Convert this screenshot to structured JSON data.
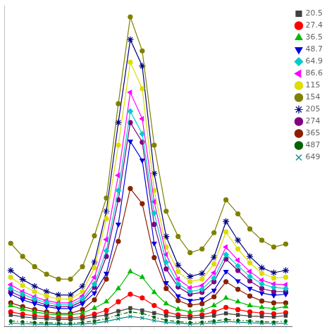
{
  "chart_data": {
    "type": "line",
    "categories": [
      null,
      null,
      null,
      null,
      null,
      null,
      null,
      null,
      null,
      null,
      null,
      null,
      null,
      null,
      null,
      null,
      null,
      null,
      null,
      null,
      null,
      null,
      null,
      null
    ],
    "series": [
      {
        "name": "20.5",
        "color": "#404040",
        "marker": "square",
        "line_style": "solid",
        "values": [
          30,
          25,
          22,
          20,
          18,
          18,
          20,
          25,
          30,
          40,
          48,
          42,
          35,
          28,
          24,
          22,
          24,
          28,
          34,
          30,
          27,
          26,
          25,
          28
        ]
      },
      {
        "name": "27.4",
        "color": "#ff0000",
        "marker": "circle",
        "line_style": "solid",
        "values": [
          38,
          32,
          28,
          25,
          22,
          22,
          25,
          32,
          42,
          65,
          85,
          75,
          55,
          38,
          30,
          27,
          30,
          38,
          50,
          44,
          38,
          35,
          33,
          36
        ]
      },
      {
        "name": "36.5",
        "color": "#00bb00",
        "marker": "triangle",
        "line_style": "solid",
        "values": [
          55,
          45,
          38,
          33,
          30,
          30,
          35,
          48,
          65,
          100,
          145,
          130,
          90,
          60,
          45,
          38,
          42,
          55,
          75,
          65,
          55,
          50,
          47,
          52
        ]
      },
      {
        "name": "48.7",
        "color": "#0000dd",
        "marker": "triangle_down",
        "line_style": "solid",
        "values": [
          85,
          70,
          60,
          52,
          47,
          47,
          60,
          88,
          140,
          270,
          490,
          440,
          220,
          115,
          80,
          68,
          72,
          95,
          145,
          120,
          100,
          88,
          82,
          85
        ]
      },
      {
        "name": "64.9",
        "color": "#00cccc",
        "marker": "diamond",
        "line_style": "solid",
        "values": [
          100,
          85,
          72,
          63,
          57,
          57,
          72,
          112,
          200,
          360,
          570,
          510,
          300,
          170,
          112,
          92,
          98,
          128,
          190,
          160,
          132,
          112,
          103,
          100
        ]
      },
      {
        "name": "86.6",
        "color": "#ff00ff",
        "marker": "triangle_left",
        "line_style": "solid",
        "values": [
          110,
          92,
          78,
          68,
          62,
          62,
          80,
          130,
          230,
          400,
          620,
          550,
          330,
          190,
          125,
          102,
          108,
          142,
          210,
          175,
          145,
          122,
          112,
          110
        ]
      },
      {
        "name": "115",
        "color": "#dddd00",
        "marker": "circle",
        "line_style": "solid",
        "values": [
          130,
          108,
          92,
          80,
          72,
          72,
          92,
          155,
          285,
          480,
          700,
          630,
          360,
          210,
          145,
          118,
          125,
          165,
          250,
          205,
          168,
          140,
          128,
          130
        ]
      },
      {
        "name": "154",
        "color": "#808000",
        "marker": "circle",
        "line_style": "solid",
        "values": [
          220,
          185,
          158,
          138,
          125,
          125,
          158,
          240,
          340,
          590,
          820,
          730,
          480,
          305,
          238,
          195,
          205,
          248,
          335,
          298,
          258,
          228,
          210,
          218
        ]
      },
      {
        "name": "205",
        "color": "#000080",
        "marker": "star",
        "line_style": "solid",
        "values": [
          148,
          124,
          106,
          92,
          83,
          83,
          106,
          170,
          305,
          540,
          760,
          690,
          405,
          238,
          162,
          132,
          140,
          183,
          278,
          228,
          185,
          155,
          142,
          148
        ]
      },
      {
        "name": "274",
        "color": "#800080",
        "marker": "circle",
        "line_style": "solid",
        "values": [
          92,
          77,
          66,
          57,
          52,
          52,
          66,
          103,
          185,
          335,
          540,
          488,
          270,
          152,
          104,
          85,
          90,
          118,
          178,
          148,
          120,
          100,
          92,
          92
        ]
      },
      {
        "name": "365",
        "color": "#8B2000",
        "marker": "circle",
        "line_style": "solid",
        "values": [
          62,
          52,
          44,
          38,
          34,
          34,
          44,
          70,
          125,
          225,
          365,
          325,
          182,
          100,
          68,
          56,
          60,
          78,
          118,
          98,
          80,
          67,
          62,
          62
        ]
      },
      {
        "name": "487",
        "color": "#006400",
        "marker": "point",
        "line_style": "dashdot",
        "values": [
          14,
          12,
          10,
          9,
          8,
          8,
          10,
          14,
          20,
          30,
          38,
          34,
          24,
          16,
          12,
          10,
          11,
          14,
          18,
          16,
          14,
          12,
          11,
          14
        ]
      },
      {
        "name": "649",
        "color": "#008B8B",
        "marker": "x",
        "line_style": "solid",
        "values": [
          8,
          7,
          6,
          5,
          5,
          5,
          6,
          8,
          13,
          20,
          26,
          22,
          15,
          10,
          8,
          6,
          7,
          9,
          13,
          11,
          9,
          8,
          7,
          8
        ]
      }
    ],
    "ylim": [
      0,
      850
    ],
    "grid": false,
    "legend": "upper right",
    "tick_labels": false
  }
}
